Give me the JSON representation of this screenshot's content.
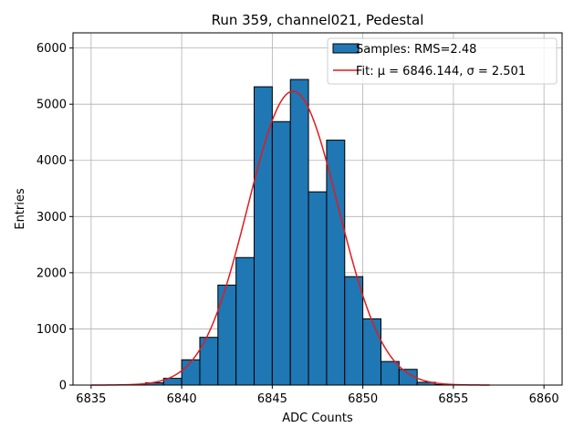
{
  "chart_data": {
    "type": "bar",
    "title": "Run 359, channel021, Pedestal",
    "xlabel": "ADC Counts",
    "ylabel": "Entries",
    "xlim": [
      6834,
      6861
    ],
    "ylim": [
      0,
      6270
    ],
    "xticks": [
      6835,
      6840,
      6845,
      6850,
      6855,
      6860
    ],
    "yticks": [
      0,
      1000,
      2000,
      3000,
      4000,
      5000,
      6000
    ],
    "grid": true,
    "legend_position": "top-right",
    "histogram": {
      "name": "Samples: RMS=2.48",
      "bin_edges": [
        6835,
        6836,
        6837,
        6838,
        6839,
        6840,
        6841,
        6842,
        6843,
        6844,
        6845,
        6846,
        6847,
        6848,
        6849,
        6850,
        6851,
        6852,
        6853,
        6854,
        6855,
        6856,
        6857,
        6858,
        6859,
        6860
      ],
      "counts": [
        0,
        0,
        5,
        40,
        120,
        450,
        850,
        1780,
        2270,
        5310,
        4690,
        5440,
        3440,
        4360,
        1930,
        1180,
        420,
        280,
        50,
        10,
        0,
        0,
        0,
        0,
        0
      ],
      "color": "#1f77b4",
      "edgecolor": "#000000"
    },
    "fit": {
      "name": "Fit: μ = 6846.144, σ = 2.501",
      "type": "gaussian",
      "mu": 6846.144,
      "sigma": 2.501,
      "amplitude": 5230,
      "x_range": [
        6835,
        6857
      ],
      "color": "#e41a1c"
    }
  }
}
